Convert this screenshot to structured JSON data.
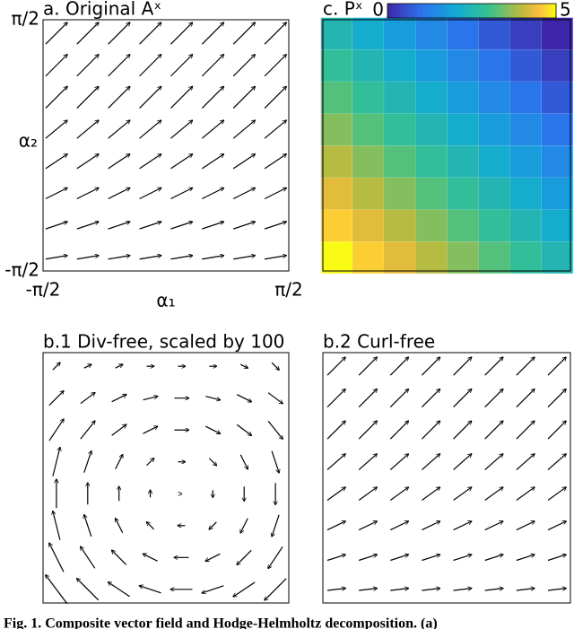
{
  "chart_data": [
    {
      "type": "quiver",
      "title": "a. Original Aˣ",
      "xlabel": "α₁",
      "ylabel": "α₂",
      "xlim": [
        -1.5708,
        1.5708
      ],
      "ylim": [
        -1.5708,
        1.5708
      ],
      "xticks": [
        {
          "value": -1.5708,
          "label": "-π/2"
        },
        {
          "value": 1.5708,
          "label": "π/2"
        }
      ],
      "yticks": [
        {
          "value": -1.5708,
          "label": "-π/2"
        },
        {
          "value": 1.5708,
          "label": "π/2"
        }
      ],
      "x": [
        -1.4,
        -1,
        -0.6,
        -0.2,
        0.2,
        0.6,
        1,
        1.4
      ],
      "y": [
        -1.4,
        -1,
        -0.6,
        -0.2,
        0.2,
        0.6,
        1,
        1.4
      ],
      "color": "#000000",
      "u": [
        [
          0.3,
          0.3,
          0.3,
          0.3,
          0.3,
          0.3,
          0.3,
          0.3
        ],
        [
          0.3,
          0.3,
          0.3,
          0.3,
          0.3,
          0.3,
          0.3,
          0.3
        ],
        [
          0.3,
          0.3,
          0.3,
          0.3,
          0.3,
          0.3,
          0.3,
          0.3
        ],
        [
          0.3,
          0.3,
          0.3,
          0.3,
          0.3,
          0.3,
          0.3,
          0.3
        ],
        [
          0.3,
          0.3,
          0.3,
          0.3,
          0.3,
          0.3,
          0.3,
          0.3
        ],
        [
          0.3,
          0.3,
          0.3,
          0.3,
          0.3,
          0.3,
          0.3,
          0.3
        ],
        [
          0.3,
          0.3,
          0.3,
          0.3,
          0.3,
          0.3,
          0.3,
          0.3
        ],
        [
          0.3,
          0.3,
          0.3,
          0.3,
          0.3,
          0.3,
          0.3,
          0.3
        ]
      ],
      "v": [
        [
          0.05,
          0.05,
          0.05,
          0.05,
          0.05,
          0.05,
          0.05,
          0.05
        ],
        [
          0.1,
          0.1,
          0.1,
          0.1,
          0.1,
          0.1,
          0.1,
          0.1
        ],
        [
          0.15,
          0.15,
          0.15,
          0.15,
          0.15,
          0.15,
          0.15,
          0.15
        ],
        [
          0.2,
          0.2,
          0.2,
          0.2,
          0.2,
          0.2,
          0.2,
          0.2
        ],
        [
          0.25,
          0.25,
          0.25,
          0.25,
          0.25,
          0.25,
          0.25,
          0.25
        ],
        [
          0.3,
          0.3,
          0.3,
          0.3,
          0.3,
          0.3,
          0.3,
          0.3
        ],
        [
          0.3,
          0.3,
          0.3,
          0.3,
          0.3,
          0.3,
          0.3,
          0.3
        ],
        [
          0.3,
          0.3,
          0.3,
          0.3,
          0.3,
          0.3,
          0.3,
          0.3
        ]
      ]
    },
    {
      "type": "heatmap",
      "title": "c. Pˣ",
      "xlim": [
        -1.5708,
        1.5708
      ],
      "ylim": [
        -1.5708,
        1.5708
      ],
      "x": [
        -1.4,
        -1,
        -0.6,
        -0.2,
        0.2,
        0.6,
        1,
        1.4
      ],
      "y": [
        -1.4,
        -1,
        -0.6,
        -0.2,
        0.2,
        0.6,
        1,
        1.4
      ],
      "clim": [
        0,
        5
      ],
      "cticks": [
        0,
        5
      ],
      "colormap": "parula",
      "values": [
        [
          5,
          4.64,
          4.28,
          3.92,
          3.56,
          3.2,
          2.84,
          2.48
        ],
        [
          4.64,
          4.28,
          3.92,
          3.56,
          3.2,
          2.84,
          2.48,
          2.12
        ],
        [
          4.28,
          3.92,
          3.56,
          3.2,
          2.84,
          2.48,
          2.12,
          1.76
        ],
        [
          3.92,
          3.56,
          3.2,
          2.84,
          2.48,
          2.12,
          1.76,
          1.4
        ],
        [
          3.56,
          3.2,
          2.84,
          2.48,
          2.12,
          1.76,
          1.4,
          1.04
        ],
        [
          3.2,
          2.84,
          2.48,
          2.12,
          1.76,
          1.4,
          1.04,
          0.68
        ],
        [
          2.84,
          2.48,
          2.12,
          1.76,
          1.4,
          1.04,
          0.68,
          0.32
        ],
        [
          2.48,
          2.12,
          1.76,
          1.4,
          1.04,
          0.68,
          0.32,
          0
        ]
      ]
    },
    {
      "type": "quiver",
      "title": "b.1 Div-free, scaled by 100",
      "xlim": [
        -1.5708,
        1.5708
      ],
      "ylim": [
        -1.5708,
        1.5708
      ],
      "x": [
        -1.4,
        -1,
        -0.6,
        -0.2,
        0.2,
        0.6,
        1,
        1.4
      ],
      "y": [
        -1.4,
        -1,
        -0.6,
        -0.2,
        0.2,
        0.6,
        1,
        1.4
      ],
      "color": "#000000",
      "u": [
        [
          -0.3,
          -0.3,
          -0.3,
          -0.3,
          -0.3,
          -0.3,
          -0.3,
          -0.3
        ],
        [
          -0.2,
          -0.2,
          -0.2,
          -0.2,
          -0.2,
          -0.2,
          -0.2,
          -0.2
        ],
        [
          -0.1,
          -0.1,
          -0.1,
          -0.1,
          -0.1,
          -0.1,
          -0.1,
          -0.1
        ],
        [
          0,
          0,
          0,
          0,
          0,
          0,
          0,
          0
        ],
        [
          0.1,
          0.1,
          0.1,
          0.1,
          0.1,
          0.1,
          0.1,
          0.1
        ],
        [
          0.2,
          0.2,
          0.2,
          0.2,
          0.2,
          0.2,
          0.2,
          0.2
        ],
        [
          0.2,
          0.2,
          0.2,
          0.2,
          0.2,
          0.2,
          0.2,
          0.2
        ],
        [
          0.1,
          0.1,
          0.1,
          0.1,
          0.1,
          0.1,
          0.1,
          0.1
        ]
      ],
      "v": [
        [
          0.4,
          0.3,
          0.2,
          0.1,
          0,
          -0.1,
          -0.2,
          -0.3
        ],
        [
          0.4,
          0.3,
          0.2,
          0.1,
          0,
          -0.1,
          -0.2,
          -0.3
        ],
        [
          0.4,
          0.3,
          0.2,
          0.1,
          0,
          -0.1,
          -0.2,
          -0.3
        ],
        [
          0.4,
          0.3,
          0.2,
          0.1,
          0,
          -0.1,
          -0.2,
          -0.3
        ],
        [
          0.4,
          0.3,
          0.2,
          0.1,
          0,
          -0.1,
          -0.2,
          -0.3
        ],
        [
          0.3,
          0.25,
          0.15,
          0.1,
          0,
          -0.1,
          -0.15,
          -0.25
        ],
        [
          0.2,
          0.15,
          0.1,
          0.05,
          0,
          -0.05,
          -0.1,
          -0.15
        ],
        [
          0.1,
          0.05,
          0.05,
          0,
          0,
          0,
          -0.05,
          -0.1
        ]
      ]
    },
    {
      "type": "quiver",
      "title": "b.2 Curl-free",
      "xlim": [
        -1.5708,
        1.5708
      ],
      "ylim": [
        -1.5708,
        1.5708
      ],
      "x": [
        -1.4,
        -1,
        -0.6,
        -0.2,
        0.2,
        0.6,
        1,
        1.4
      ],
      "y": [
        -1.4,
        -1,
        -0.6,
        -0.2,
        0.2,
        0.6,
        1,
        1.4
      ],
      "color": "#000000",
      "u": [
        [
          0.25,
          0.25,
          0.25,
          0.25,
          0.25,
          0.25,
          0.25,
          0.25
        ],
        [
          0.25,
          0.25,
          0.25,
          0.25,
          0.25,
          0.25,
          0.25,
          0.25
        ],
        [
          0.25,
          0.25,
          0.25,
          0.25,
          0.25,
          0.25,
          0.25,
          0.25
        ],
        [
          0.25,
          0.25,
          0.25,
          0.25,
          0.25,
          0.25,
          0.25,
          0.25
        ],
        [
          0.25,
          0.25,
          0.25,
          0.25,
          0.25,
          0.25,
          0.25,
          0.25
        ],
        [
          0.25,
          0.25,
          0.25,
          0.25,
          0.25,
          0.25,
          0.25,
          0.25
        ],
        [
          0.25,
          0.25,
          0.25,
          0.25,
          0.25,
          0.25,
          0.25,
          0.25
        ],
        [
          0.25,
          0.25,
          0.25,
          0.25,
          0.25,
          0.25,
          0.25,
          0.25
        ]
      ],
      "v": [
        [
          0.03,
          0.03,
          0.03,
          0.03,
          0.03,
          0.03,
          0.03,
          0.03
        ],
        [
          0.08,
          0.08,
          0.08,
          0.08,
          0.08,
          0.08,
          0.08,
          0.08
        ],
        [
          0.12,
          0.12,
          0.12,
          0.12,
          0.12,
          0.12,
          0.12,
          0.12
        ],
        [
          0.18,
          0.18,
          0.18,
          0.18,
          0.18,
          0.18,
          0.18,
          0.18
        ],
        [
          0.22,
          0.22,
          0.22,
          0.22,
          0.22,
          0.22,
          0.22,
          0.22
        ],
        [
          0.25,
          0.25,
          0.25,
          0.25,
          0.25,
          0.25,
          0.25,
          0.25
        ],
        [
          0.25,
          0.25,
          0.25,
          0.25,
          0.25,
          0.25,
          0.25,
          0.25
        ],
        [
          0.25,
          0.25,
          0.25,
          0.25,
          0.25,
          0.25,
          0.25,
          0.25
        ]
      ]
    }
  ],
  "caption": "Fig. 1. Composite vector field and Hodge-Helmholtz decomposition. (a)"
}
